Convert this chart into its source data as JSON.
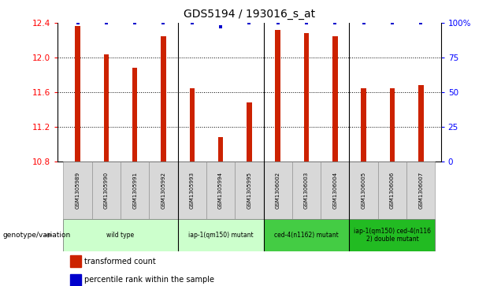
{
  "title": "GDS5194 / 193016_s_at",
  "samples": [
    "GSM1305989",
    "GSM1305990",
    "GSM1305991",
    "GSM1305992",
    "GSM1305993",
    "GSM1305994",
    "GSM1305995",
    "GSM1306002",
    "GSM1306003",
    "GSM1306004",
    "GSM1306005",
    "GSM1306006",
    "GSM1306007"
  ],
  "red_values": [
    12.36,
    12.04,
    11.88,
    12.25,
    11.65,
    11.08,
    11.48,
    12.32,
    12.28,
    12.25,
    11.65,
    11.65,
    11.68
  ],
  "blue_values": [
    100,
    100,
    100,
    100,
    100,
    97,
    100,
    100,
    100,
    100,
    100,
    100,
    100
  ],
  "ylim_left": [
    10.8,
    12.4
  ],
  "ylim_right": [
    0,
    100
  ],
  "yticks_left": [
    10.8,
    11.2,
    11.6,
    12.0,
    12.4
  ],
  "yticks_right": [
    0,
    25,
    50,
    75,
    100
  ],
  "bar_color": "#cc2200",
  "dot_color": "#0000cc",
  "genotype_label": "genotype/variation",
  "legend_items": [
    "transformed count",
    "percentile rank within the sample"
  ],
  "group_info": [
    {
      "start": 0,
      "end": 3,
      "label": "wild type",
      "color": "#ccffcc"
    },
    {
      "start": 4,
      "end": 6,
      "label": "iap-1(qm150) mutant",
      "color": "#ccffcc"
    },
    {
      "start": 7,
      "end": 9,
      "label": "ced-4(n1162) mutant",
      "color": "#44cc44"
    },
    {
      "start": 10,
      "end": 12,
      "label": "iap-1(qm150) ced-4(n116\n2) double mutant",
      "color": "#22bb22"
    }
  ],
  "group_boundaries": [
    3.5,
    6.5,
    9.5
  ]
}
